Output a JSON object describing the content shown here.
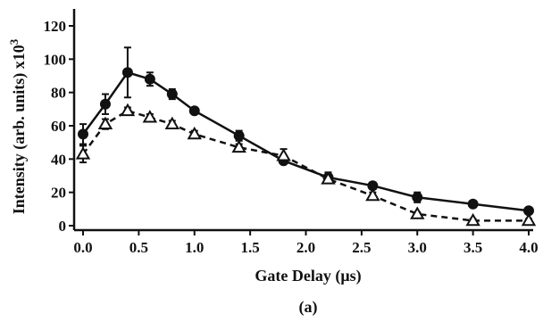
{
  "chart_data": {
    "type": "line",
    "panel_label": "(a)",
    "xlabel": "Gate Delay (μs)",
    "ylabel": "Intensity (arb. units) x10",
    "ylabel_superscript": "3",
    "xlim": [
      0,
      4.0
    ],
    "ylim": [
      0,
      120
    ],
    "xticks": [
      0,
      0.5,
      1.0,
      1.5,
      2.0,
      2.5,
      3.0,
      3.5,
      4.0
    ],
    "xtick_labels": [
      "0.0",
      "0.5",
      "1.0",
      "1.5",
      "2.0",
      "2.5",
      "3.0",
      "3.5",
      "4.0"
    ],
    "yticks": [
      0,
      20,
      40,
      60,
      80,
      100,
      120
    ],
    "ytick_labels": [
      "0",
      "20",
      "40",
      "60",
      "80",
      "100",
      "120"
    ],
    "grid": false,
    "series": [
      {
        "marker": "filled-circle",
        "line_style": "solid",
        "color": "#111111",
        "x": [
          0.0,
          0.2,
          0.4,
          0.6,
          0.8,
          1.0,
          1.4,
          1.8,
          2.2,
          2.6,
          3.0,
          3.5,
          4.0
        ],
        "y": [
          55,
          73,
          92,
          88,
          79,
          69,
          54,
          39,
          29,
          24,
          17,
          13,
          9
        ],
        "err": [
          6,
          6,
          15,
          4,
          3,
          1,
          3,
          1,
          3,
          2,
          3,
          1,
          1
        ]
      },
      {
        "marker": "open-triangle",
        "line_style": "dashed",
        "color": "#111111",
        "x": [
          0.0,
          0.2,
          0.4,
          0.6,
          0.8,
          1.0,
          1.4,
          1.8,
          2.2,
          2.6,
          3.0,
          3.5,
          4.0
        ],
        "y": [
          43,
          61,
          69,
          65,
          61,
          55,
          47,
          42,
          28,
          18,
          7,
          3,
          3
        ],
        "err": [
          5,
          3,
          2,
          2,
          2,
          2,
          2,
          4,
          2,
          2,
          1,
          1,
          1
        ]
      }
    ]
  }
}
